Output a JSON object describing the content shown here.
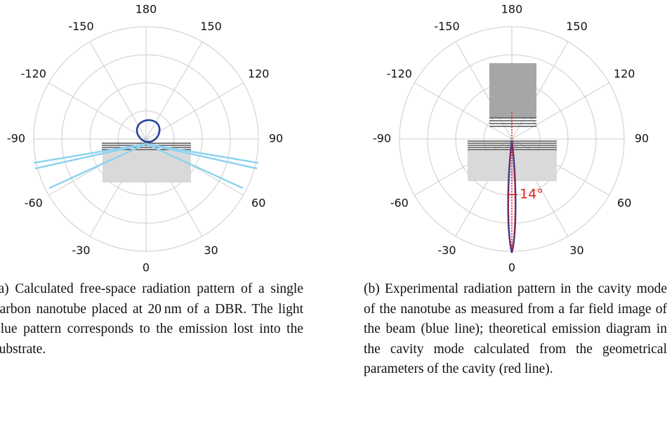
{
  "figures": [
    {
      "angle_labels": [
        "180",
        "150",
        "120",
        "90",
        "60",
        "30",
        "0",
        "-30",
        "-60",
        "-90",
        "-120",
        "-150"
      ],
      "caption": "(a) Calculated free-space radiation pattern of a single carbon nanotube placed at 20 nm of a DBR. The light blue pattern corresponds to the emission lost into the substrate."
    },
    {
      "angle_labels": [
        "180",
        "150",
        "120",
        "90",
        "60",
        "30",
        "0",
        "-30",
        "-60",
        "-90",
        "-120",
        "-150"
      ],
      "annotation": "14°",
      "caption": "(b) Experimental radiation pattern in the cavity mode of the nanotube as measured from a far field image of the beam (blue line); theoretical emission diagram in the cavity mode calculated from the geometrical parameters of the cavity (red line)."
    }
  ]
}
